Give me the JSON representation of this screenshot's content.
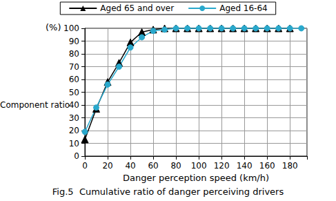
{
  "chart_data": {
    "type": "line",
    "title": "Fig.5  Cumulative ratio of danger perceiving drivers",
    "xlabel": "Danger perception speed (km/h)",
    "ylabel": "Component ratio",
    "annotations": [
      "(%)"
    ],
    "xlim": [
      0,
      195
    ],
    "xticks": [
      0,
      20,
      40,
      60,
      80,
      100,
      120,
      140,
      160,
      180
    ],
    "ylim": [
      0,
      100
    ],
    "yticks": [
      0,
      10,
      20,
      30,
      40,
      50,
      60,
      70,
      80,
      90,
      100
    ],
    "grid": true,
    "legend": "top",
    "series": [
      {
        "name": "Aged 65 and over",
        "color": "#000000",
        "marker": "triangle",
        "x": [
          0,
          10,
          20,
          30,
          40,
          50,
          60,
          70,
          80,
          90,
          100,
          110,
          120,
          130,
          140,
          150,
          160,
          170,
          180
        ],
        "values": [
          13,
          37,
          58,
          73,
          89,
          97,
          99,
          100,
          100,
          100,
          100,
          100,
          100,
          100,
          100,
          100,
          100,
          100,
          100
        ]
      },
      {
        "name": "Aged 16-64",
        "color": "#29a8cc",
        "marker": "circle",
        "x": [
          0,
          10,
          20,
          30,
          40,
          50,
          60,
          70,
          80,
          90,
          100,
          110,
          120,
          130,
          140,
          150,
          160,
          170,
          180,
          190
        ],
        "values": [
          19,
          38,
          56,
          70,
          85,
          93,
          98,
          99,
          100,
          100,
          100,
          100,
          100,
          100,
          100,
          100,
          100,
          100,
          100,
          100
        ]
      }
    ]
  }
}
